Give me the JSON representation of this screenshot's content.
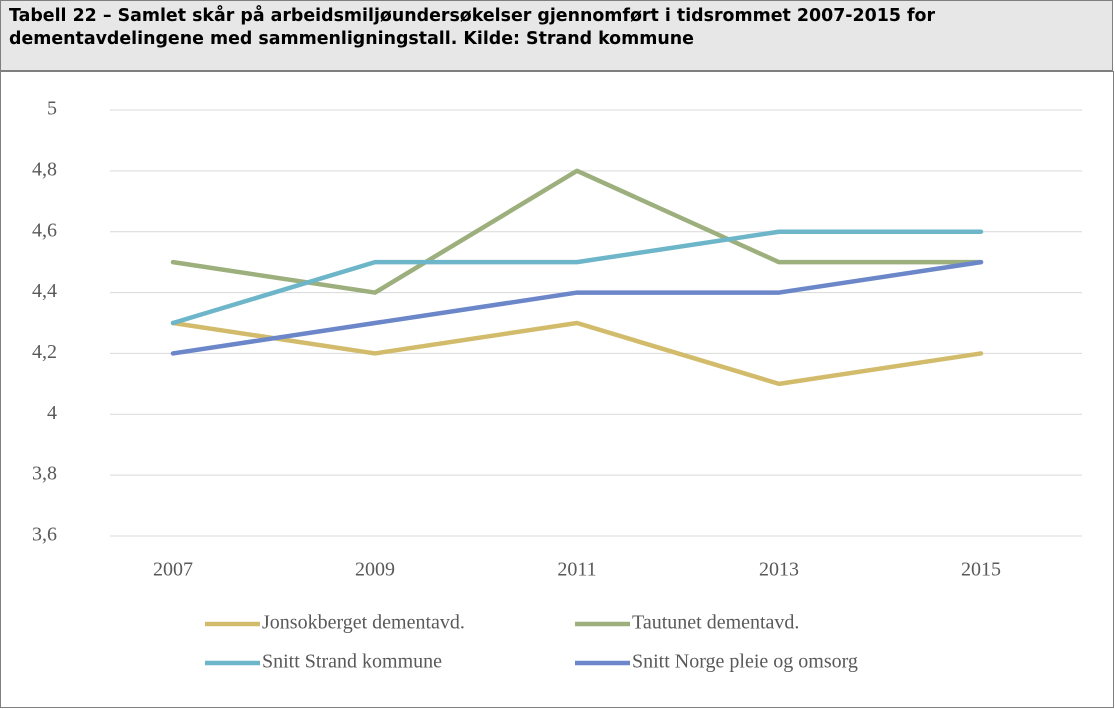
{
  "chart_data": {
    "type": "line",
    "title": "Tabell 22 – Samlet skår på arbeidsmiljøundersøkelser gjennomført i tidsrommet 2007-2015 for dementavdelingene med sammenligningstall. Kilde: Strand kommune",
    "categories": [
      "2007",
      "2009",
      "2011",
      "2013",
      "2015"
    ],
    "series": [
      {
        "name": "Jonsokberget dementavd.",
        "color": "#d2bc6c",
        "values": [
          4.3,
          4.2,
          4.3,
          4.1,
          4.2
        ]
      },
      {
        "name": "Tautunet dementavd.",
        "color": "#9caf7c",
        "values": [
          4.5,
          4.4,
          4.8,
          4.5,
          4.5
        ]
      },
      {
        "name": "Snitt Strand kommune",
        "color": "#6db6c9",
        "values": [
          4.3,
          4.5,
          4.5,
          4.6,
          4.6
        ]
      },
      {
        "name": "Snitt Norge pleie og omsorg",
        "color": "#6b87c9",
        "values": [
          4.2,
          4.3,
          4.4,
          4.4,
          4.5
        ]
      }
    ],
    "ylim": [
      3.6,
      5
    ],
    "yticks": [
      {
        "value": 3.6,
        "label": "3,6"
      },
      {
        "value": 3.8,
        "label": "3,8"
      },
      4,
      {
        "value": 4.2,
        "label": "4,2"
      },
      {
        "value": 4.4,
        "label": "4,4"
      },
      {
        "value": 4.6,
        "label": "4,6"
      },
      {
        "value": 4.8,
        "label": "4,8"
      },
      5
    ],
    "grid": true,
    "legend": "bottom"
  }
}
